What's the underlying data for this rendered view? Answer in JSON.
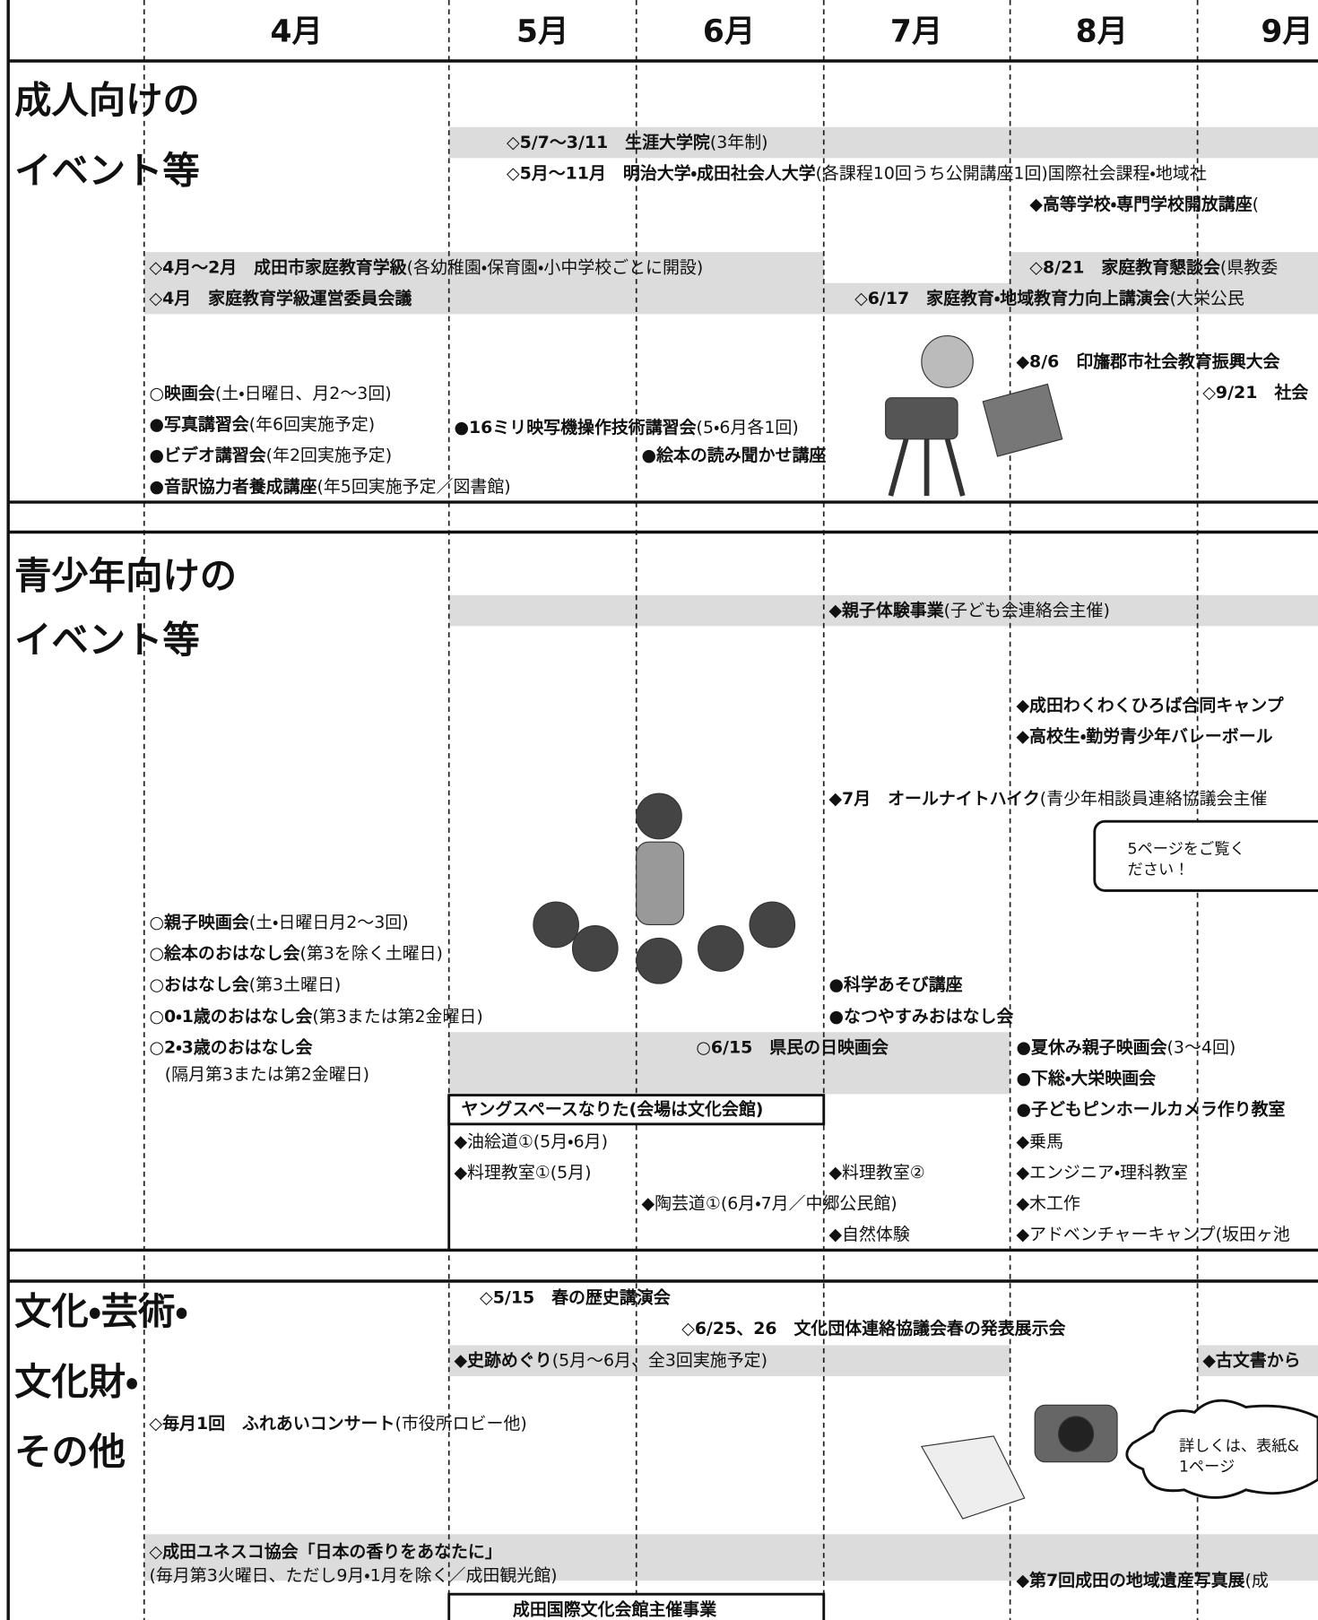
{
  "months": [
    "4月",
    "5月",
    "6月",
    "7月",
    "8月",
    "9月"
  ],
  "adult": {
    "title": [
      "成人向けの",
      "イベント等"
    ],
    "items": [
      {
        "text": "◇5/7〜3/11　生涯大学院",
        "note": "(3年制)"
      },
      {
        "text": "◇5月〜11月　明治大学・成田社会人大学",
        "note": "(各課程10回うち公開講座1回)国際社会課程・地域社"
      },
      {
        "text": "◆高等学校・専門学校開放講座",
        "note": "("
      },
      {
        "text": "◇4月〜2月　成田市家庭教育学級",
        "note": "(各幼稚園・保育園・小中学校ごとに開設)"
      },
      {
        "text": "◇8/21　家庭教育懇談会",
        "note": "(県教委"
      },
      {
        "text": "◇4月　家庭教育学級運営委員会議"
      },
      {
        "text": "◇6/17　家庭教育・地域教育力向上講演会",
        "note": "(大栄公民"
      },
      {
        "text": "◆8/6　印旛郡市社会教育振興大会"
      },
      {
        "text": "◇9/21　社会"
      },
      {
        "text": "○映画会",
        "note": "(土・日曜日、月2〜3回)"
      },
      {
        "text": "●写真講習会",
        "note": "(年6回実施予定)"
      },
      {
        "text": "●16ミリ映写機操作技術講習会",
        "note": "(5・6月各1回)"
      },
      {
        "text": "●ビデオ講習会",
        "note": "(年2回実施予定)"
      },
      {
        "text": "●絵本の読み聞かせ講座"
      },
      {
        "text": "●音訳協力者養成講座",
        "note": "(年5回実施予定／図書館)"
      }
    ]
  },
  "youth": {
    "title": [
      "青少年向けの",
      "イベント等"
    ],
    "items": [
      {
        "text": "◆親子体験事業",
        "note": "(子ども会連絡会主催)"
      },
      {
        "text": "◆成田わくわくひろば合同キャンプ"
      },
      {
        "text": "◆高校生・勤労青少年バレーボール"
      },
      {
        "text": "◆7月　オールナイトハイク",
        "note": "(青少年相談員連絡協議会主催"
      },
      {
        "text": "○親子映画会",
        "note": "(土・日曜日月2〜3回)"
      },
      {
        "text": "○絵本のおはなし会",
        "note": "(第3を除く土曜日)"
      },
      {
        "text": "○おはなし会",
        "note": "(第3土曜日)"
      },
      {
        "text": "●科学あそび講座"
      },
      {
        "text": "○0・1歳のおはなし会",
        "note": "(第3または第2金曜日)"
      },
      {
        "text": "●なつやすみおはなし会"
      },
      {
        "text": "○2・3歳のおはなし会"
      },
      {
        "note": "(隔月第3または第2金曜日)"
      },
      {
        "text": "○6/15　県民の日映画会"
      },
      {
        "text": "●夏休み親子映画会",
        "note": "(3〜4回)"
      },
      {
        "text": "●下総・大栄映画会"
      },
      {
        "text": "ヤングスペースなりた(会場は文化会館)"
      },
      {
        "text": "●子どもピンホールカメラ作り教室"
      },
      {
        "note": "◆油絵道①(5月・6月)"
      },
      {
        "note": "◆料理教室①(5月)"
      },
      {
        "note": "◆料理教室②"
      },
      {
        "note": "◆乗馬"
      },
      {
        "note": "◆エンジニア・理科教室"
      },
      {
        "note": "◆陶芸道①(6月・7月／中郷公民館)"
      },
      {
        "note": "◆木工作"
      },
      {
        "note": "◆自然体験"
      },
      {
        "note": "◆アドベンチャーキャンプ(坂田ヶ池"
      }
    ],
    "callout": [
      "5ページをご覧く",
      "ださい！"
    ]
  },
  "culture": {
    "title": [
      "文化・芸術・",
      "文化財・",
      "その他"
    ],
    "items": [
      {
        "text": "◇5/15　春の歴史講演会"
      },
      {
        "text": "◇6/25、26　文化団体連絡協議会春の発表展示会"
      },
      {
        "text": "◆史跡めぐり",
        "note": "(5月〜6月、全3回実施予定)"
      },
      {
        "text": "◆古文書から"
      },
      {
        "text": "◇毎月1回　ふれあいコンサート",
        "note": "(市役所ロビー他)"
      },
      {
        "text": "◇成田ユネスコ協会「日本の香りをあなたに」"
      },
      {
        "note": "(毎月第3火曜日、ただし9月・1月を除く／成田観光館)"
      },
      {
        "text": "◆第7回成田の地域遺産写真展",
        "note": "(成"
      },
      {
        "text": "成田国際文化会館主催事業"
      }
    ],
    "callout": [
      "詳しくは、表紙&",
      "1ページ"
    ]
  }
}
